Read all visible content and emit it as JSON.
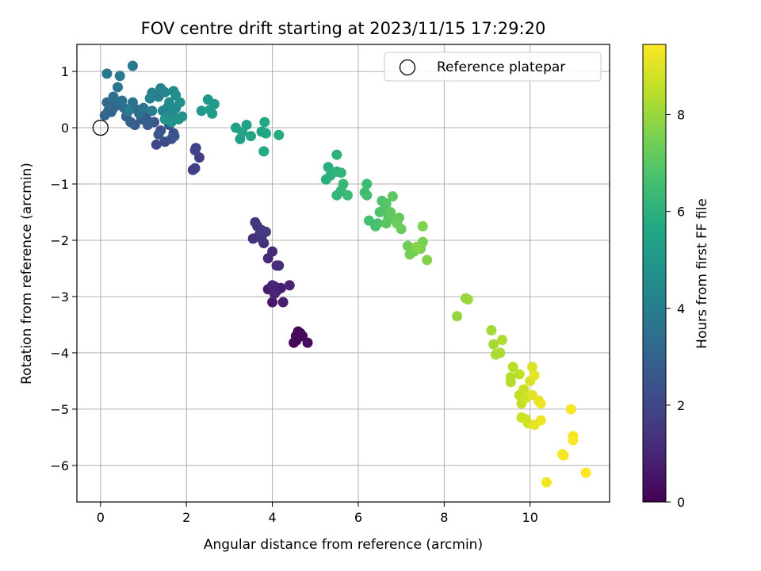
{
  "chart_data": {
    "type": "scatter",
    "title": "FOV centre drift starting at 2023/11/15 17:29:20",
    "xlabel": "Angular distance from reference (arcmin)",
    "ylabel": "Rotation from reference (arcmin)",
    "xlim": [
      -0.55,
      11.85
    ],
    "ylim": [
      -6.65,
      1.48
    ],
    "xticks": [
      0,
      2,
      4,
      6,
      8,
      10
    ],
    "yticks": [
      1,
      0,
      -1,
      -2,
      -3,
      -4,
      -5,
      -6
    ],
    "grid": true,
    "legend": {
      "position": "top-right",
      "entries": [
        "Reference platepar"
      ]
    },
    "reference_point": {
      "x": 0,
      "y": 0
    },
    "colorbar": {
      "label": "Hours from first FF file",
      "min": 0,
      "max": 9.45,
      "ticks": [
        0,
        2,
        4,
        6,
        8
      ],
      "colormap": "viridis"
    },
    "points": [
      {
        "x": 4.5,
        "y": -3.82,
        "h": 0.05
      },
      {
        "x": 4.55,
        "y": -3.7,
        "h": 0.1
      },
      {
        "x": 4.6,
        "y": -3.62,
        "h": 0.15
      },
      {
        "x": 4.65,
        "y": -3.65,
        "h": 0.2
      },
      {
        "x": 4.7,
        "y": -3.7,
        "h": 0.25
      },
      {
        "x": 4.82,
        "y": -3.82,
        "h": 0.3
      },
      {
        "x": 4.56,
        "y": -3.78,
        "h": 0.22
      },
      {
        "x": 4.0,
        "y": -3.1,
        "h": 0.6
      },
      {
        "x": 4.05,
        "y": -2.82,
        "h": 0.65
      },
      {
        "x": 3.9,
        "y": -2.87,
        "h": 0.7
      },
      {
        "x": 4.1,
        "y": -2.9,
        "h": 0.75
      },
      {
        "x": 4.2,
        "y": -2.85,
        "h": 0.8
      },
      {
        "x": 4.25,
        "y": -3.1,
        "h": 0.85
      },
      {
        "x": 4.4,
        "y": -2.8,
        "h": 0.9
      },
      {
        "x": 4.05,
        "y": -2.95,
        "h": 0.95
      },
      {
        "x": 4.0,
        "y": -2.8,
        "h": 1.0
      },
      {
        "x": 3.9,
        "y": -2.32,
        "h": 1.05
      },
      {
        "x": 4.0,
        "y": -2.2,
        "h": 1.1
      },
      {
        "x": 4.1,
        "y": -2.45,
        "h": 1.15
      },
      {
        "x": 4.15,
        "y": -2.45,
        "h": 1.2
      },
      {
        "x": 3.8,
        "y": -2.05,
        "h": 1.25
      },
      {
        "x": 3.55,
        "y": -1.97,
        "h": 1.3
      },
      {
        "x": 3.65,
        "y": -1.75,
        "h": 1.35
      },
      {
        "x": 3.7,
        "y": -1.9,
        "h": 1.4
      },
      {
        "x": 3.75,
        "y": -1.97,
        "h": 1.45
      },
      {
        "x": 3.6,
        "y": -1.68,
        "h": 1.5
      },
      {
        "x": 3.85,
        "y": -1.85,
        "h": 1.55
      },
      {
        "x": 3.75,
        "y": -1.82,
        "h": 1.6
      },
      {
        "x": 2.15,
        "y": -0.75,
        "h": 1.7
      },
      {
        "x": 2.2,
        "y": -0.72,
        "h": 1.75
      },
      {
        "x": 2.3,
        "y": -0.53,
        "h": 1.8
      },
      {
        "x": 2.22,
        "y": -0.36,
        "h": 1.85
      },
      {
        "x": 2.2,
        "y": -0.4,
        "h": 1.9
      },
      {
        "x": 1.3,
        "y": -0.3,
        "h": 2.0
      },
      {
        "x": 1.5,
        "y": -0.25,
        "h": 2.1
      },
      {
        "x": 1.65,
        "y": -0.2,
        "h": 2.2
      },
      {
        "x": 1.7,
        "y": -0.1,
        "h": 2.25
      },
      {
        "x": 1.4,
        "y": -0.05,
        "h": 2.3
      },
      {
        "x": 1.25,
        "y": 0.1,
        "h": 2.4
      },
      {
        "x": 1.6,
        "y": 0.05,
        "h": 2.45
      },
      {
        "x": 1.72,
        "y": -0.15,
        "h": 2.5
      },
      {
        "x": 1.35,
        "y": -0.12,
        "h": 2.55
      },
      {
        "x": 1.1,
        "y": 0.05,
        "h": 2.6
      },
      {
        "x": 0.8,
        "y": 0.05,
        "h": 2.7
      },
      {
        "x": 0.95,
        "y": 0.15,
        "h": 2.75
      },
      {
        "x": 1.05,
        "y": 0.2,
        "h": 2.8
      },
      {
        "x": 1.15,
        "y": 0.1,
        "h": 2.85
      },
      {
        "x": 0.6,
        "y": 0.2,
        "h": 2.9
      },
      {
        "x": 0.7,
        "y": 0.1,
        "h": 2.95
      },
      {
        "x": 0.3,
        "y": 0.35,
        "h": 3.0
      },
      {
        "x": 0.25,
        "y": 0.28,
        "h": 3.05
      },
      {
        "x": 0.1,
        "y": 0.22,
        "h": 3.1
      },
      {
        "x": 0.18,
        "y": 0.3,
        "h": 3.15
      },
      {
        "x": 0.15,
        "y": 0.45,
        "h": 3.2
      },
      {
        "x": 0.2,
        "y": 0.42,
        "h": 3.25
      },
      {
        "x": 0.4,
        "y": 0.4,
        "h": 3.3
      },
      {
        "x": 0.55,
        "y": 0.35,
        "h": 3.35
      },
      {
        "x": 0.85,
        "y": 0.32,
        "h": 3.4
      },
      {
        "x": 0.9,
        "y": 0.25,
        "h": 3.45
      },
      {
        "x": 0.3,
        "y": 0.55,
        "h": 3.5
      },
      {
        "x": 0.5,
        "y": 0.48,
        "h": 3.55
      },
      {
        "x": 0.75,
        "y": 0.45,
        "h": 3.6
      },
      {
        "x": 1.0,
        "y": 0.35,
        "h": 3.65
      },
      {
        "x": 0.4,
        "y": 0.72,
        "h": 3.7
      },
      {
        "x": 0.15,
        "y": 0.96,
        "h": 3.75
      },
      {
        "x": 0.45,
        "y": 0.92,
        "h": 3.8
      },
      {
        "x": 0.75,
        "y": 1.1,
        "h": 3.85
      },
      {
        "x": 0.65,
        "y": 0.3,
        "h": 3.9
      },
      {
        "x": 1.2,
        "y": 0.3,
        "h": 4.0
      },
      {
        "x": 1.35,
        "y": 0.55,
        "h": 4.05
      },
      {
        "x": 1.2,
        "y": 0.62,
        "h": 4.1
      },
      {
        "x": 1.15,
        "y": 0.52,
        "h": 4.15
      },
      {
        "x": 1.4,
        "y": 0.7,
        "h": 4.2
      },
      {
        "x": 1.5,
        "y": 0.63,
        "h": 4.25
      },
      {
        "x": 1.45,
        "y": 0.3,
        "h": 4.3
      },
      {
        "x": 1.55,
        "y": 0.35,
        "h": 4.35
      },
      {
        "x": 1.6,
        "y": 0.25,
        "h": 4.4
      },
      {
        "x": 1.7,
        "y": 0.2,
        "h": 4.45
      },
      {
        "x": 1.75,
        "y": 0.35,
        "h": 4.5
      },
      {
        "x": 1.6,
        "y": 0.45,
        "h": 4.55
      },
      {
        "x": 1.7,
        "y": 0.65,
        "h": 4.6
      },
      {
        "x": 1.75,
        "y": 0.58,
        "h": 4.65
      },
      {
        "x": 1.85,
        "y": 0.45,
        "h": 4.7
      },
      {
        "x": 1.9,
        "y": 0.2,
        "h": 4.75
      },
      {
        "x": 1.82,
        "y": 0.15,
        "h": 4.8
      },
      {
        "x": 1.5,
        "y": 0.15,
        "h": 4.85
      },
      {
        "x": 1.65,
        "y": 0.1,
        "h": 4.9
      },
      {
        "x": 2.35,
        "y": 0.3,
        "h": 5.0
      },
      {
        "x": 2.5,
        "y": 0.5,
        "h": 5.05
      },
      {
        "x": 2.6,
        "y": 0.25,
        "h": 5.1
      },
      {
        "x": 2.65,
        "y": 0.42,
        "h": 5.15
      },
      {
        "x": 2.55,
        "y": 0.32,
        "h": 5.2
      },
      {
        "x": 3.15,
        "y": 0.0,
        "h": 5.3
      },
      {
        "x": 3.25,
        "y": -0.2,
        "h": 5.35
      },
      {
        "x": 3.4,
        "y": 0.05,
        "h": 5.4
      },
      {
        "x": 3.3,
        "y": -0.08,
        "h": 5.45
      },
      {
        "x": 3.5,
        "y": -0.15,
        "h": 5.5
      },
      {
        "x": 3.75,
        "y": -0.07,
        "h": 5.55
      },
      {
        "x": 3.82,
        "y": 0.1,
        "h": 5.6
      },
      {
        "x": 3.85,
        "y": -0.1,
        "h": 5.65
      },
      {
        "x": 3.8,
        "y": -0.42,
        "h": 5.7
      },
      {
        "x": 4.15,
        "y": -0.13,
        "h": 5.75
      },
      {
        "x": 5.25,
        "y": -0.92,
        "h": 5.9
      },
      {
        "x": 5.3,
        "y": -0.7,
        "h": 5.95
      },
      {
        "x": 5.35,
        "y": -0.85,
        "h": 6.0
      },
      {
        "x": 5.5,
        "y": -0.48,
        "h": 6.05
      },
      {
        "x": 5.5,
        "y": -0.78,
        "h": 6.1
      },
      {
        "x": 5.6,
        "y": -0.8,
        "h": 6.15
      },
      {
        "x": 5.5,
        "y": -1.2,
        "h": 6.2
      },
      {
        "x": 5.6,
        "y": -1.12,
        "h": 6.25
      },
      {
        "x": 5.65,
        "y": -1.0,
        "h": 6.3
      },
      {
        "x": 5.75,
        "y": -1.2,
        "h": 6.35
      },
      {
        "x": 6.2,
        "y": -1.0,
        "h": 6.45
      },
      {
        "x": 6.15,
        "y": -1.15,
        "h": 6.5
      },
      {
        "x": 6.2,
        "y": -1.2,
        "h": 6.55
      },
      {
        "x": 6.25,
        "y": -1.65,
        "h": 6.6
      },
      {
        "x": 6.4,
        "y": -1.75,
        "h": 6.65
      },
      {
        "x": 6.45,
        "y": -1.7,
        "h": 6.7
      },
      {
        "x": 6.55,
        "y": -1.3,
        "h": 6.75
      },
      {
        "x": 6.5,
        "y": -1.5,
        "h": 6.8
      },
      {
        "x": 6.6,
        "y": -1.45,
        "h": 6.85
      },
      {
        "x": 6.65,
        "y": -1.35,
        "h": 6.9
      },
      {
        "x": 6.7,
        "y": -1.6,
        "h": 6.95
      },
      {
        "x": 6.65,
        "y": -1.7,
        "h": 7.0
      },
      {
        "x": 6.8,
        "y": -1.22,
        "h": 7.05
      },
      {
        "x": 6.75,
        "y": -1.5,
        "h": 7.1
      },
      {
        "x": 6.85,
        "y": -1.62,
        "h": 7.15
      },
      {
        "x": 6.95,
        "y": -1.6,
        "h": 7.2
      },
      {
        "x": 7.0,
        "y": -1.8,
        "h": 7.25
      },
      {
        "x": 6.9,
        "y": -1.7,
        "h": 7.3
      },
      {
        "x": 7.15,
        "y": -2.1,
        "h": 7.35
      },
      {
        "x": 7.2,
        "y": -2.25,
        "h": 7.4
      },
      {
        "x": 7.3,
        "y": -2.2,
        "h": 7.45
      },
      {
        "x": 7.45,
        "y": -2.15,
        "h": 7.5
      },
      {
        "x": 7.5,
        "y": -2.03,
        "h": 7.55
      },
      {
        "x": 7.5,
        "y": -1.75,
        "h": 7.6
      },
      {
        "x": 7.6,
        "y": -2.35,
        "h": 7.65
      },
      {
        "x": 7.35,
        "y": -2.12,
        "h": 7.7
      },
      {
        "x": 8.3,
        "y": -3.35,
        "h": 7.9
      },
      {
        "x": 8.5,
        "y": -3.03,
        "h": 7.95
      },
      {
        "x": 8.55,
        "y": -3.05,
        "h": 8.0
      },
      {
        "x": 9.1,
        "y": -3.6,
        "h": 8.1
      },
      {
        "x": 9.15,
        "y": -3.85,
        "h": 8.15
      },
      {
        "x": 9.2,
        "y": -4.03,
        "h": 8.2
      },
      {
        "x": 9.3,
        "y": -4.0,
        "h": 8.25
      },
      {
        "x": 9.35,
        "y": -3.77,
        "h": 8.3
      },
      {
        "x": 9.55,
        "y": -4.43,
        "h": 8.35
      },
      {
        "x": 9.55,
        "y": -4.52,
        "h": 8.4
      },
      {
        "x": 9.6,
        "y": -4.25,
        "h": 8.45
      },
      {
        "x": 9.75,
        "y": -4.38,
        "h": 8.5
      },
      {
        "x": 9.75,
        "y": -4.75,
        "h": 8.55
      },
      {
        "x": 9.8,
        "y": -4.9,
        "h": 8.6
      },
      {
        "x": 9.85,
        "y": -4.65,
        "h": 8.65
      },
      {
        "x": 9.8,
        "y": -5.15,
        "h": 8.7
      },
      {
        "x": 9.9,
        "y": -5.18,
        "h": 8.75
      },
      {
        "x": 9.95,
        "y": -5.25,
        "h": 8.8
      },
      {
        "x": 9.9,
        "y": -4.8,
        "h": 8.85
      },
      {
        "x": 10.0,
        "y": -4.5,
        "h": 8.9
      },
      {
        "x": 10.05,
        "y": -4.25,
        "h": 8.95
      },
      {
        "x": 10.05,
        "y": -4.75,
        "h": 9.0
      },
      {
        "x": 10.1,
        "y": -4.4,
        "h": 9.05
      },
      {
        "x": 10.1,
        "y": -5.28,
        "h": 9.1
      },
      {
        "x": 10.2,
        "y": -4.85,
        "h": 9.15
      },
      {
        "x": 10.25,
        "y": -4.9,
        "h": 9.2
      },
      {
        "x": 10.25,
        "y": -5.2,
        "h": 9.22
      },
      {
        "x": 10.38,
        "y": -6.3,
        "h": 9.3
      },
      {
        "x": 10.75,
        "y": -5.8,
        "h": 9.32
      },
      {
        "x": 10.78,
        "y": -5.82,
        "h": 9.34
      },
      {
        "x": 10.95,
        "y": -5.0,
        "h": 9.36
      },
      {
        "x": 11.0,
        "y": -5.48,
        "h": 9.38
      },
      {
        "x": 11.0,
        "y": -5.55,
        "h": 9.4
      },
      {
        "x": 11.3,
        "y": -6.13,
        "h": 9.42
      }
    ]
  }
}
